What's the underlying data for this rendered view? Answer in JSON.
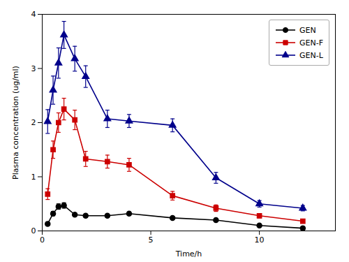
{
  "chart_data": {
    "type": "line",
    "xlabel": "Time/h",
    "ylabel": "Plasma concentration (ug/ml)",
    "x": [
      0.25,
      0.5,
      0.75,
      1.0,
      1.5,
      2.0,
      3.0,
      4.0,
      6.0,
      8.0,
      10.0,
      12.0
    ],
    "xlim": [
      0,
      13.5
    ],
    "ylim": [
      0,
      4
    ],
    "xticks": [
      0,
      5,
      10
    ],
    "yticks": [
      0,
      1,
      2,
      3,
      4
    ],
    "grid": false,
    "legend": "upper right",
    "series": [
      {
        "name": "GEN",
        "color": "#000000",
        "marker": "o",
        "values": [
          0.13,
          0.32,
          0.45,
          0.47,
          0.3,
          0.28,
          0.28,
          0.32,
          0.24,
          0.2,
          0.1,
          0.05
        ],
        "yerr": [
          0.03,
          0.04,
          0.05,
          0.05,
          0.03,
          0.03,
          0.03,
          0.03,
          0.03,
          0.02,
          0.02,
          0.01
        ]
      },
      {
        "name": "GEN-F",
        "color": "#cc0000",
        "marker": "s",
        "values": [
          0.68,
          1.5,
          2.0,
          2.25,
          2.05,
          1.33,
          1.28,
          1.22,
          0.65,
          0.42,
          0.28,
          0.18
        ],
        "yerr": [
          0.1,
          0.16,
          0.18,
          0.2,
          0.18,
          0.14,
          0.12,
          0.12,
          0.08,
          0.06,
          0.04,
          0.03
        ]
      },
      {
        "name": "GEN-L",
        "color": "#00008B",
        "marker": "^",
        "values": [
          2.02,
          2.6,
          3.1,
          3.62,
          3.18,
          2.85,
          2.07,
          2.03,
          1.95,
          0.98,
          0.5,
          0.42
        ],
        "yerr": [
          0.22,
          0.26,
          0.28,
          0.25,
          0.23,
          0.2,
          0.16,
          0.12,
          0.12,
          0.1,
          0.06,
          0.05
        ]
      }
    ]
  }
}
